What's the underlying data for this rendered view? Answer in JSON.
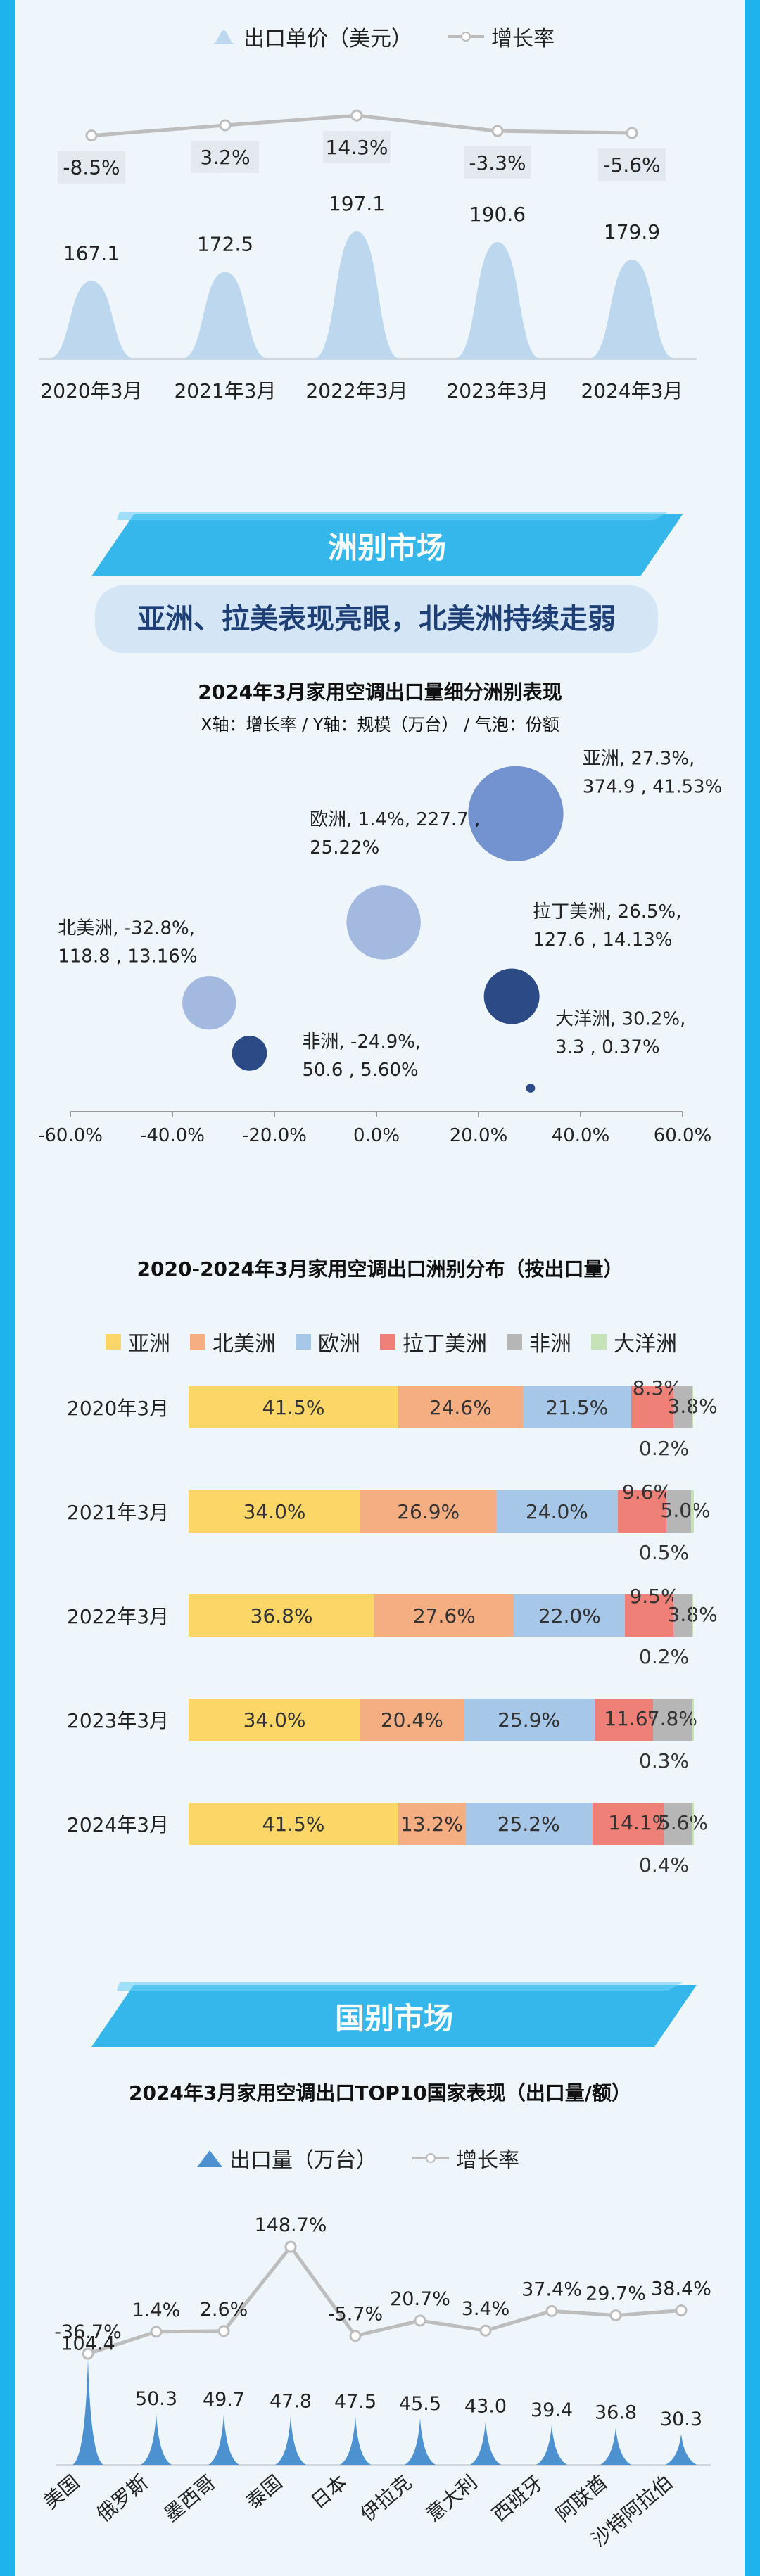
{
  "colors": {
    "frame": "#1fb3ee",
    "panel": "#eef6fc",
    "banner": "#2aaee6",
    "asia": "#fcd667",
    "north_america": "#f5ad82",
    "europe": "#a6c7e8",
    "latin_america": "#ee8078",
    "africa": "#b6b6b6",
    "oceania": "#c5e3b6"
  },
  "price_chart": {
    "legend": {
      "price": "出口单价（美元）",
      "growth": "增长率"
    },
    "chart_data": {
      "type": "area",
      "categories": [
        "2020年3月",
        "2021年3月",
        "2022年3月",
        "2023年3月",
        "2024年3月"
      ],
      "series": [
        {
          "name": "出口单价（美元）",
          "values": [
            167.1,
            172.5,
            197.1,
            190.6,
            179.9
          ]
        },
        {
          "name": "增长率",
          "values": [
            -8.5,
            3.2,
            14.3,
            -3.3,
            -5.6
          ]
        }
      ],
      "value_labels": [
        "167.1",
        "172.5",
        "197.1",
        "190.6",
        "179.9"
      ],
      "growth_labels": [
        "-8.5%",
        "3.2%",
        "14.3%",
        "-3.3%",
        "-5.6%"
      ]
    }
  },
  "section_continent": {
    "banner": "洲别市场",
    "subtitle": "亚洲、拉美表现亮眼，北美洲持续走弱"
  },
  "bubble_chart": {
    "title": "2024年3月家用空调出口量细分洲别表现",
    "subtitle": "X轴：增长率 / Y轴：规模（万台） / 气泡：份额",
    "chart_data": {
      "type": "scatter",
      "xlim": [
        -60,
        60
      ],
      "x_ticks": [
        "-60.0%",
        "-40.0%",
        "-20.0%",
        "0.0%",
        "20.0%",
        "40.0%",
        "60.0%"
      ],
      "points": [
        {
          "name": "亚洲",
          "x": 27.3,
          "y": 374.9,
          "size": 41.53,
          "label1": "亚洲, 27.3%,",
          "label2": "374.9 , 41.53%"
        },
        {
          "name": "欧洲",
          "x": 1.4,
          "y": 227.7,
          "size": 25.22,
          "label1": "欧洲, 1.4%, 227.7 ,",
          "label2": "25.22%"
        },
        {
          "name": "北美洲",
          "x": -32.8,
          "y": 118.8,
          "size": 13.16,
          "label1": "北美洲, -32.8%,",
          "label2": "118.8 , 13.16%"
        },
        {
          "name": "拉丁美洲",
          "x": 26.5,
          "y": 127.6,
          "size": 14.13,
          "label1": "拉丁美洲, 26.5%,",
          "label2": "127.6 , 14.13%"
        },
        {
          "name": "非洲",
          "x": -24.9,
          "y": 50.6,
          "size": 5.6,
          "label1": "非洲, -24.9%,",
          "label2": "50.6 , 5.60%"
        },
        {
          "name": "大洋洲",
          "x": 30.2,
          "y": 3.3,
          "size": 0.37,
          "label1": "大洋洲, 30.2%,",
          "label2": "3.3 , 0.37%"
        }
      ]
    }
  },
  "stacked_chart": {
    "title": "2020-2024年3月家用空调出口洲别分布（按出口量）",
    "legend": [
      "亚洲",
      "北美洲",
      "欧洲",
      "拉丁美洲",
      "非洲",
      "大洋洲"
    ],
    "chart_data": {
      "type": "bar",
      "categories": [
        "2020年3月",
        "2021年3月",
        "2022年3月",
        "2023年3月",
        "2024年3月"
      ],
      "series": [
        {
          "name": "亚洲",
          "values": [
            41.5,
            34.0,
            36.8,
            34.0,
            41.5
          ]
        },
        {
          "name": "北美洲",
          "values": [
            24.6,
            26.9,
            27.6,
            20.4,
            13.2
          ]
        },
        {
          "name": "欧洲",
          "values": [
            21.5,
            24.0,
            22.0,
            25.9,
            25.2
          ]
        },
        {
          "name": "拉丁美洲",
          "values": [
            8.3,
            9.6,
            9.5,
            11.6,
            14.1
          ]
        },
        {
          "name": "非洲",
          "values": [
            3.8,
            5.0,
            3.8,
            7.8,
            5.6
          ]
        },
        {
          "name": "大洋洲",
          "values": [
            0.2,
            0.5,
            0.2,
            0.3,
            0.4
          ]
        }
      ],
      "labels": [
        [
          "41.5%",
          "24.6%",
          "21.5%",
          "8.3%",
          "3.8%",
          "0.2%"
        ],
        [
          "34.0%",
          "26.9%",
          "24.0%",
          "9.6%",
          "5.0%",
          "0.5%"
        ],
        [
          "36.8%",
          "27.6%",
          "22.0%",
          "9.5%",
          "3.8%",
          "0.2%"
        ],
        [
          "34.0%",
          "20.4%",
          "25.9%",
          "11.6%",
          "7.8%",
          "0.3%"
        ],
        [
          "41.5%",
          "13.2%",
          "25.2%",
          "14.1%",
          "5.6%",
          "0.4%"
        ]
      ]
    }
  },
  "section_country": {
    "banner": "国别市场",
    "chart_title": "2024年3月家用空调出口TOP10国家表现（出口量/额）"
  },
  "country_chart": {
    "legend": {
      "volume": "出口量（万台）",
      "growth": "增长率"
    },
    "chart_data": {
      "type": "bar",
      "categories": [
        "美国",
        "俄罗斯",
        "墨西哥",
        "泰国",
        "日本",
        "伊拉克",
        "意大利",
        "西班牙",
        "阿联酋",
        "沙特阿拉伯"
      ],
      "series": [
        {
          "name": "出口量（万台）",
          "values": [
            104.4,
            50.3,
            49.7,
            47.8,
            47.5,
            45.5,
            43.0,
            39.4,
            36.8,
            30.3
          ]
        },
        {
          "name": "增长率",
          "values": [
            -36.7,
            1.4,
            2.6,
            148.7,
            -5.7,
            20.7,
            3.4,
            37.4,
            29.7,
            38.4
          ]
        }
      ],
      "value_labels": [
        "104.4",
        "50.3",
        "49.7",
        "47.8",
        "47.5",
        "45.5",
        "43.0",
        "39.4",
        "36.8",
        "30.3"
      ],
      "growth_labels": [
        "-36.7%",
        "1.4%",
        "2.6%",
        "148.7%",
        "-5.7%",
        "20.7%",
        "3.4%",
        "37.4%",
        "29.7%",
        "38.4%"
      ]
    }
  }
}
